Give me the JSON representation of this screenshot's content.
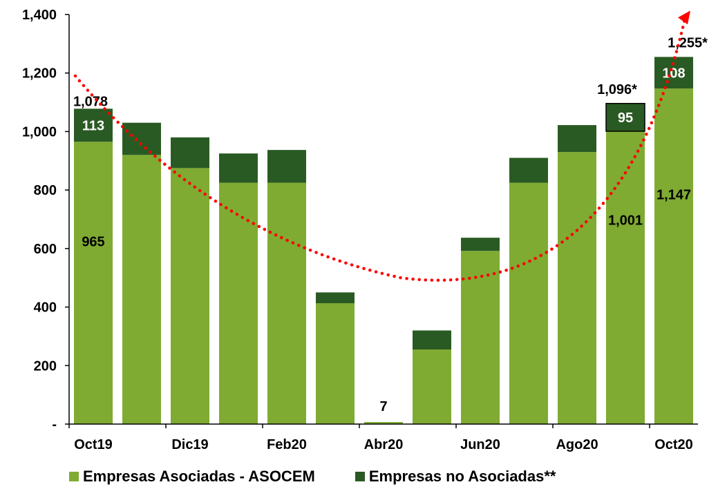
{
  "colors": {
    "asociadas": "#7fab32",
    "no_asociadas": "#2a5a23",
    "trend": "#ff0000",
    "text": "#000000"
  },
  "legend": {
    "asociadas": "Empresas Asociadas - ASOCEM",
    "no_asociadas": "Empresas no Asociadas**"
  },
  "chart_data": {
    "type": "bar",
    "stacked": true,
    "categories": [
      "Oct19",
      "Nov19",
      "Dic19",
      "Ene20",
      "Feb20",
      "Mar20",
      "Abr20",
      "May20",
      "Jun20",
      "Jul20",
      "Ago20",
      "Sep20",
      "Oct20"
    ],
    "x_tick_labels": [
      "Oct19",
      "",
      "Dic19",
      "",
      "Feb20",
      "",
      "Abr20",
      "",
      "Jun20",
      "",
      "Ago20",
      "",
      "Oct20"
    ],
    "series": [
      {
        "name": "Empresas Asociadas - ASOCEM",
        "values": [
          965,
          920,
          875,
          825,
          825,
          413,
          7,
          255,
          592,
          825,
          930,
          1001,
          1147
        ]
      },
      {
        "name": "Empresas no Asociadas**",
        "values": [
          113,
          110,
          105,
          100,
          112,
          37,
          0,
          65,
          45,
          85,
          92,
          95,
          108
        ]
      }
    ],
    "y_ticks": [
      "-",
      "200",
      "400",
      "600",
      "800",
      "1,000",
      "1,200",
      "1,400"
    ],
    "ylim": [
      0,
      1400
    ],
    "grid": false,
    "legend_position": "bottom",
    "data_labels": [
      {
        "category": "Oct19",
        "series": "Empresas Asociadas - ASOCEM",
        "text": "965"
      },
      {
        "category": "Oct19",
        "series": "Empresas no Asociadas**",
        "text": "113"
      },
      {
        "category": "Oct19",
        "series": "total",
        "text": "1,078"
      },
      {
        "category": "Abr20",
        "series": "total",
        "text": "7"
      },
      {
        "category": "Sep20",
        "series": "Empresas Asociadas - ASOCEM",
        "text": "1,001"
      },
      {
        "category": "Sep20",
        "series": "Empresas no Asociadas**",
        "text": "95"
      },
      {
        "category": "Sep20",
        "series": "total",
        "text": "1,096*"
      },
      {
        "category": "Oct20",
        "series": "Empresas Asociadas - ASOCEM",
        "text": "1,147"
      },
      {
        "category": "Oct20",
        "series": "Empresas no Asociadas**",
        "text": "108"
      },
      {
        "category": "Oct20",
        "series": "total",
        "text": "1,255*"
      }
    ],
    "trend_curve": {
      "style": "dotted",
      "with_arrow": true
    }
  }
}
